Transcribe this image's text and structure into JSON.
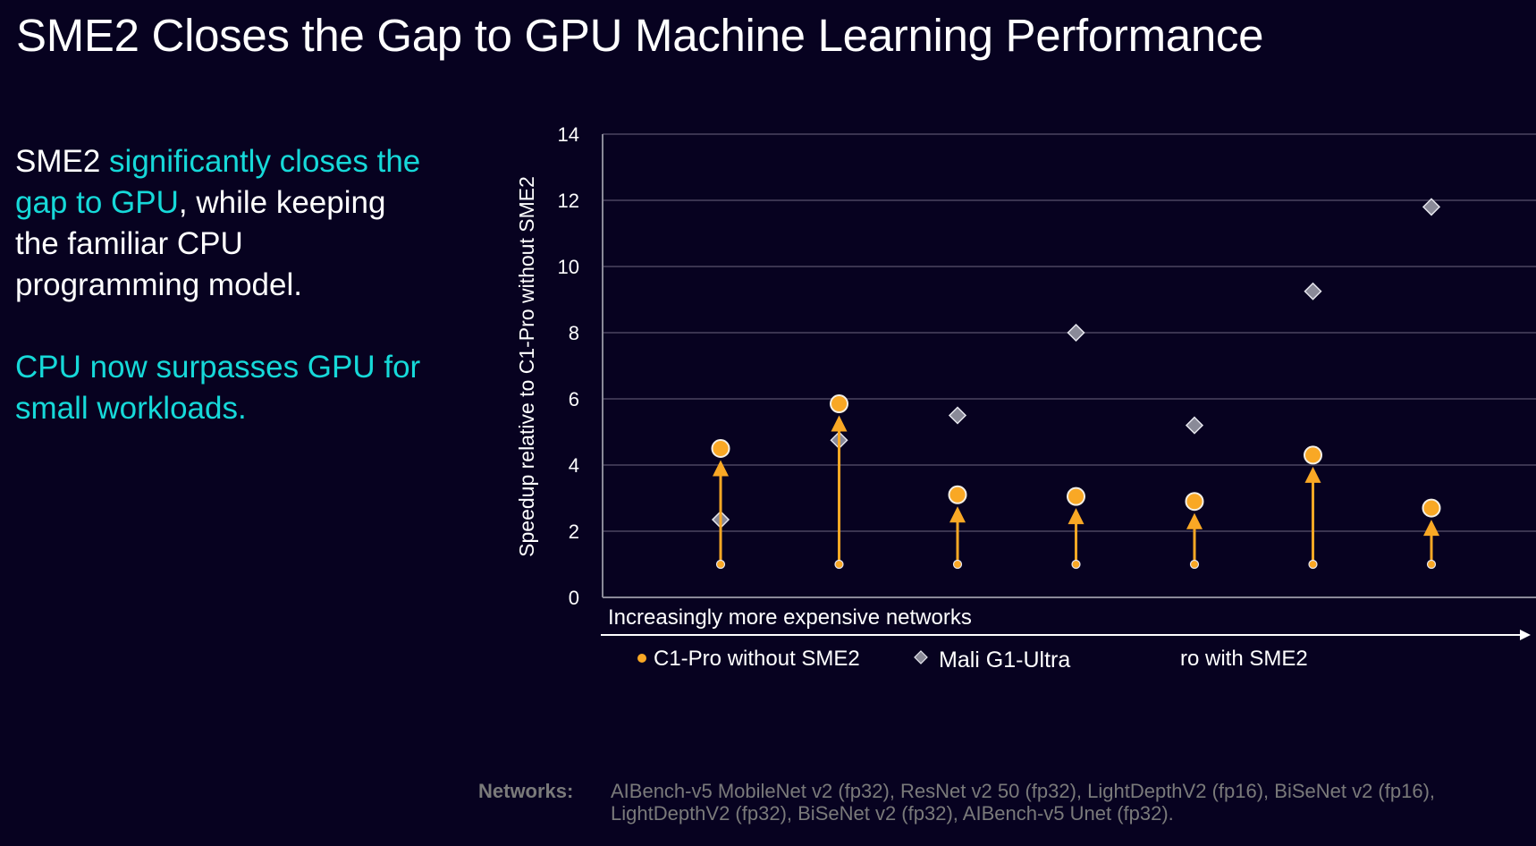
{
  "title": "SME2 Closes the Gap to GPU Machine Learning Performance",
  "colors": {
    "background": "#070220",
    "accent": "#16d9d9",
    "orange": "#f9a825",
    "diamond": "#8a8a98",
    "gridline": "#3a3450",
    "footnote": "#7a7a7a"
  },
  "left_text": {
    "para1": [
      {
        "text": "SME2 ",
        "highlight": false
      },
      {
        "text": "significantly closes the gap to GPU",
        "highlight": true
      },
      {
        "text": ", while keeping the familiar CPU programming model.",
        "highlight": false
      }
    ],
    "para2": [
      {
        "text": "CPU now surpasses GPU for small workloads.",
        "highlight": true
      }
    ]
  },
  "footnote": {
    "label": "Networks:",
    "text": "AIBench-v5 MobileNet v2 (fp32), ResNet v2 50 (fp32), LightDepthV2 (fp16), BiSeNet v2 (fp16), LightDepthV2 (fp32), BiSeNet v2 (fp32), AIBench-v5 Unet (fp32)."
  },
  "chart_data": {
    "type": "scatter",
    "title": "",
    "xlabel": "Increasingly more expensive networks",
    "ylabel": "Speedup relative to C1-Pro without SME2",
    "ylim": [
      0,
      14
    ],
    "yticks": [
      0,
      2,
      4,
      6,
      8,
      10,
      12,
      14
    ],
    "grid": true,
    "categories": [
      "AIBench-v5 MobileNet v2 (fp32)",
      "ResNet v2 50 (fp32)",
      "LightDepthV2 (fp16)",
      "BiSeNet v2 (fp16)",
      "LightDepthV2 (fp32)",
      "BiSeNet v2 (fp32)",
      "AIBench-v5 Unet (fp32)"
    ],
    "series": [
      {
        "name": "C1-Pro without SME2",
        "marker": "small-dot",
        "values": [
          1.0,
          1.0,
          1.0,
          1.0,
          1.0,
          1.0,
          1.0
        ]
      },
      {
        "name": "Mali G1-Ultra",
        "marker": "diamond",
        "values": [
          2.35,
          4.75,
          5.5,
          8.0,
          5.2,
          9.25,
          11.8
        ]
      },
      {
        "name": "C1-Pro with SME2",
        "marker": "circle",
        "values": [
          4.5,
          5.85,
          3.1,
          3.05,
          2.9,
          4.3,
          2.7
        ]
      }
    ],
    "arrows": "from C1-Pro without SME2 to C1-Pro with SME2 per category",
    "legend": {
      "placement": "bottom",
      "items": [
        {
          "label": "C1-Pro without SME2",
          "marker": "dot"
        },
        {
          "label": "Mali G1-Ultra",
          "marker": "diamond"
        },
        {
          "label": "ro with SME2",
          "marker": "none"
        }
      ]
    }
  }
}
